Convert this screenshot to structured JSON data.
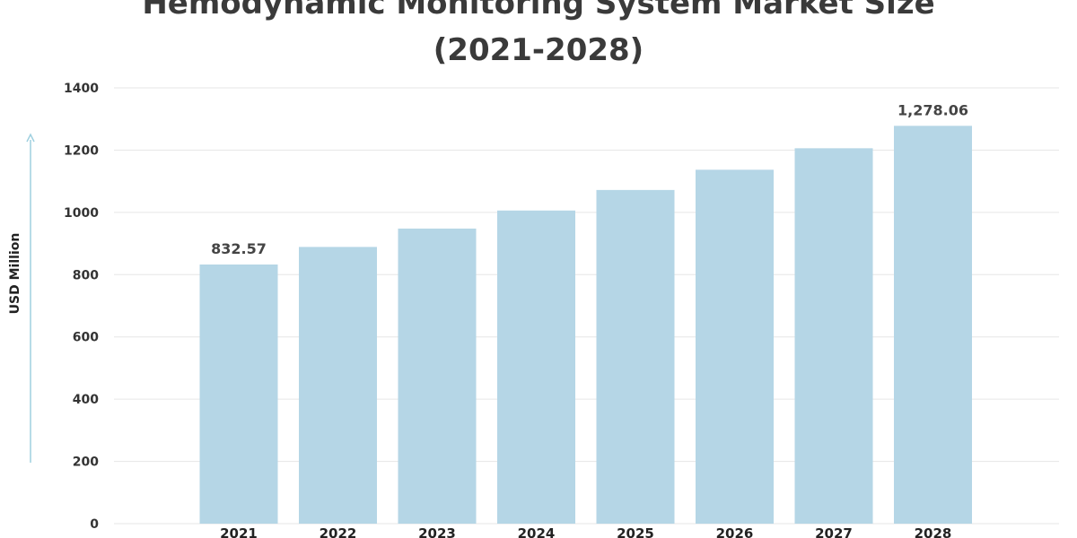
{
  "chart_data": {
    "type": "bar",
    "title_line1": "Hemodynamic Monitoring System Market Size",
    "title_line2": "(2021-2028)",
    "xlabel": "",
    "ylabel": "USD Million",
    "categories": [
      "2021",
      "2022",
      "2023",
      "2024",
      "2025",
      "2026",
      "2027",
      "2028"
    ],
    "values": [
      832.57,
      889,
      948,
      1006,
      1072,
      1137,
      1206,
      1278.06
    ],
    "data_labels": [
      {
        "category": "2021",
        "text": "832.57"
      },
      {
        "category": "2028",
        "text": "1,278.06"
      }
    ],
    "ylim": [
      0,
      1400
    ],
    "yticks": [
      "0",
      "200",
      "400",
      "600",
      "800",
      "1000",
      "1200",
      "1400"
    ],
    "grid": true,
    "bar_color": "#b5d6e6",
    "grid_color": "#e6e6e6",
    "axis_arrow_color": "#9fd0df"
  }
}
